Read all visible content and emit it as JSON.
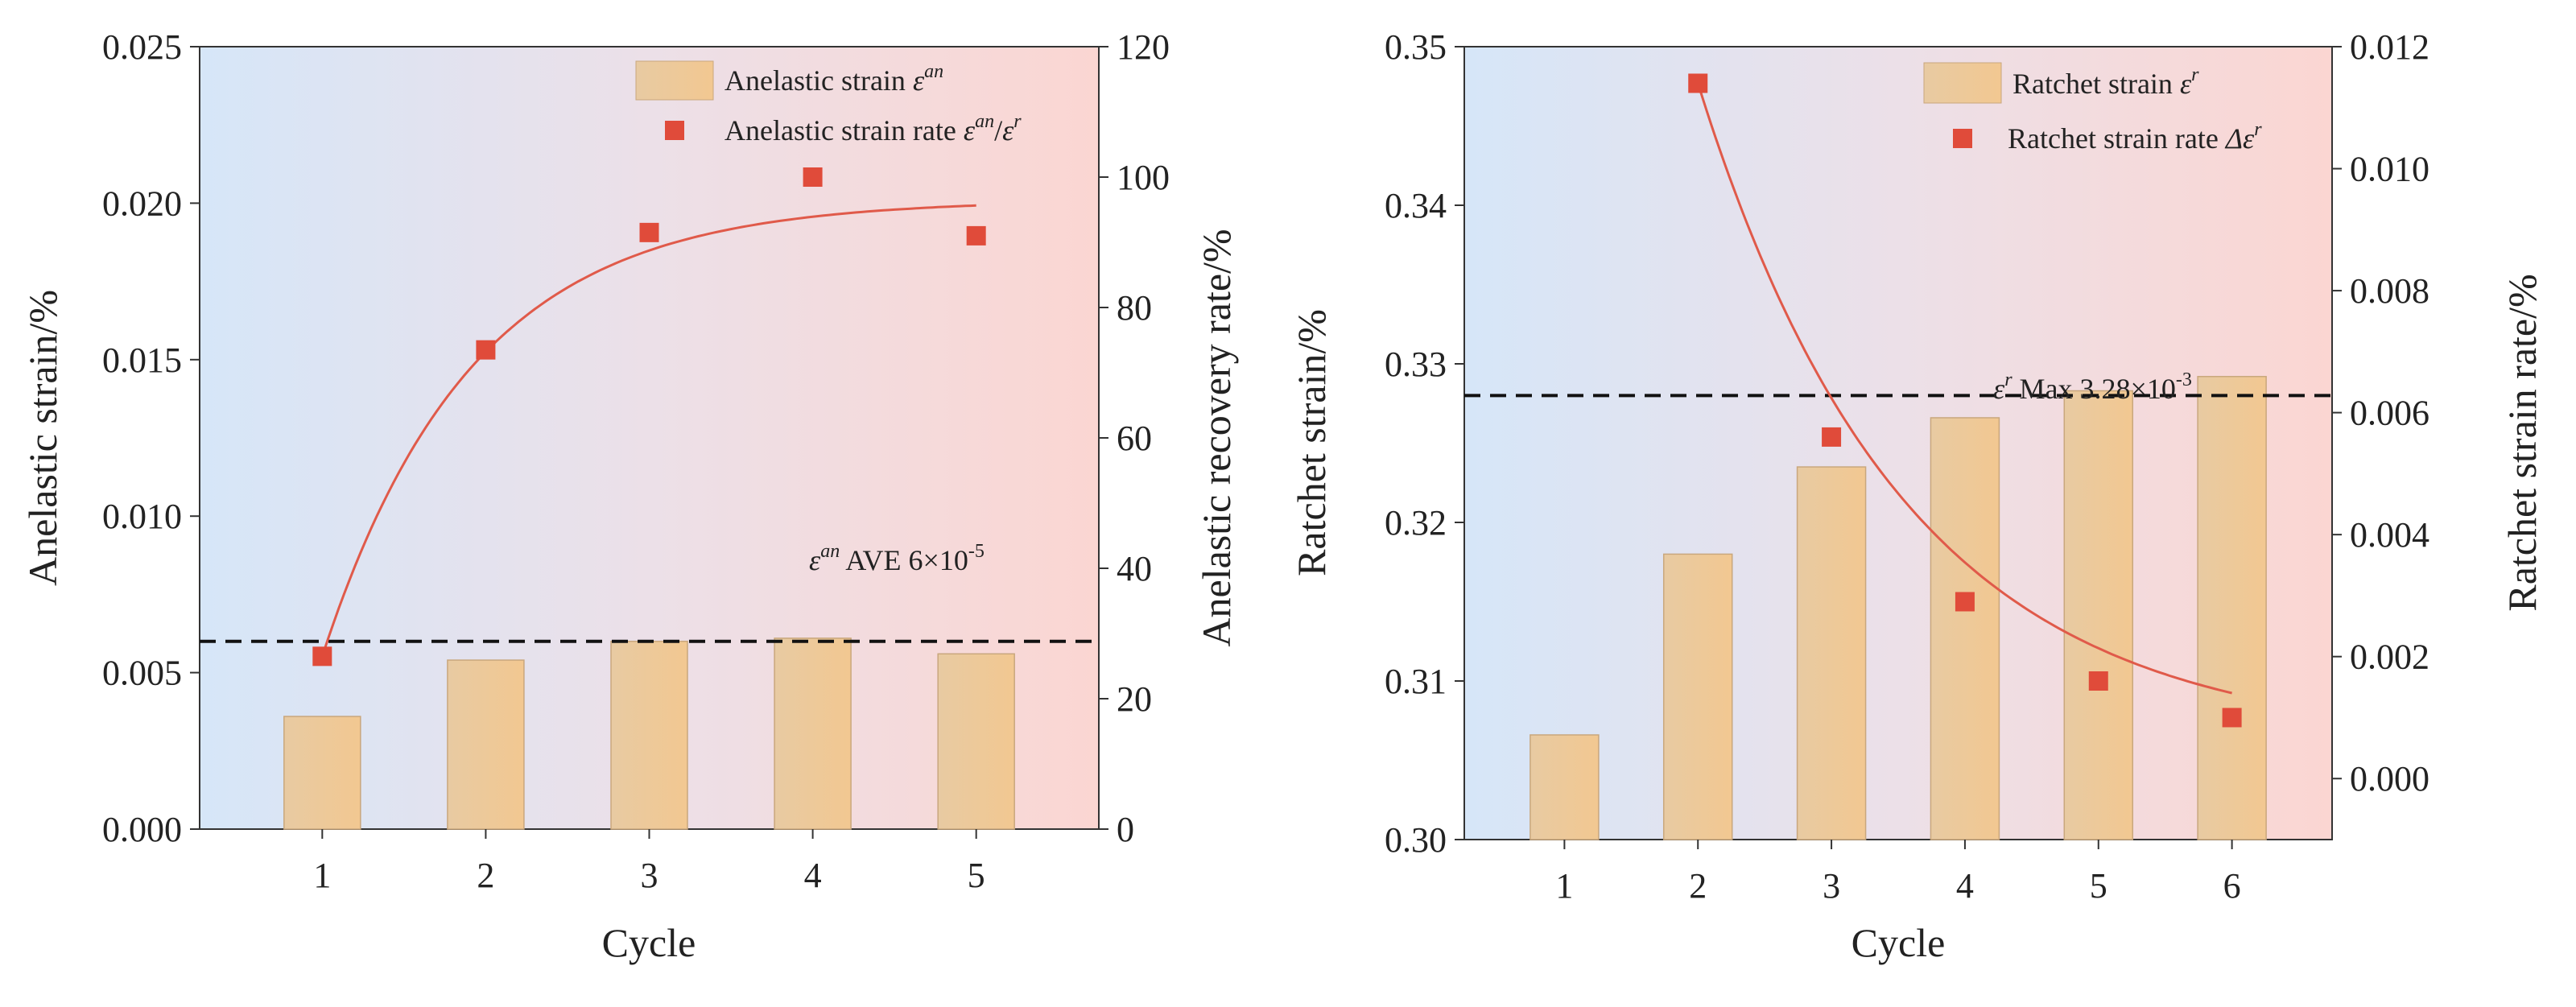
{
  "chart_data": [
    {
      "type": "bar",
      "panel": "left",
      "categories": [
        "1",
        "2",
        "3",
        "4",
        "5"
      ],
      "xlabel": "Cycle",
      "ylabel": "Anelastic strain/%",
      "ylabel_right": "Anelastic recovery rate/%",
      "ylim": [
        0,
        0.025
      ],
      "yticks": [
        "0.000",
        "0.005",
        "0.010",
        "0.015",
        "0.020",
        "0.025"
      ],
      "ylim_right": [
        0,
        120
      ],
      "yticks_right": [
        "0",
        "20",
        "40",
        "60",
        "80",
        "100",
        "120"
      ],
      "series": [
        {
          "name": "Anelastic strain",
          "axis": "left",
          "kind": "bar",
          "values": [
            0.0036,
            0.0054,
            0.006,
            0.0061,
            0.0056
          ]
        },
        {
          "name": "Anelastic strain rate",
          "axis": "right",
          "kind": "scatter",
          "values": [
            26.5,
            73.5,
            91.5,
            100.0,
            91.0
          ]
        },
        {
          "name": "fit",
          "axis": "right",
          "kind": "curve",
          "model": "exp_rise",
          "params": {
            "a": 96.5,
            "b": 70.0,
            "k": 1.1,
            "x0": 1
          },
          "domain": [
            1,
            5
          ]
        }
      ],
      "reference_line": {
        "axis": "left",
        "value": 0.006
      },
      "legend": {
        "position": "top-right",
        "bar_label": "Anelastic strain ",
        "bar_sym": "ε",
        "bar_sup": "an",
        "rate_label": "Anelastic strain rate ",
        "rate_sym": "ε",
        "rate_sup": "an",
        "rate_sep": "/",
        "rate_sym2": "ε",
        "rate_sup2": "r"
      },
      "annotation": {
        "sym": "ε",
        "sup": "an",
        "text": " AVE 6×10",
        "exp": "-5"
      }
    },
    {
      "type": "bar",
      "panel": "right",
      "categories": [
        "1",
        "2",
        "3",
        "4",
        "5",
        "6"
      ],
      "xlabel": "Cycle",
      "ylabel": "Ratchet strain/%",
      "ylabel_right": "Ratchet strain rate/%",
      "ylim": [
        0.3,
        0.35
      ],
      "yticks": [
        "0.30",
        "0.31",
        "0.32",
        "0.33",
        "0.34",
        "0.35"
      ],
      "ylim_right": [
        -0.001,
        0.012
      ],
      "yticks_right": [
        "0.000",
        "0.002",
        "0.004",
        "0.006",
        "0.008",
        "0.010",
        "0.012"
      ],
      "series": [
        {
          "name": "Ratchet strain",
          "axis": "left",
          "kind": "bar",
          "values": [
            0.3066,
            0.318,
            0.3235,
            0.3266,
            0.3283,
            0.3292
          ]
        },
        {
          "name": "Ratchet strain rate",
          "axis": "right",
          "kind": "scatter",
          "values": [
            null,
            0.0114,
            0.0056,
            0.0029,
            0.0016,
            0.001
          ]
        },
        {
          "name": "fit",
          "axis": "right",
          "kind": "curve",
          "model": "exp_decay",
          "params": {
            "a": 0.0006,
            "b": 0.0108,
            "k": 0.65,
            "x0": 2
          },
          "domain": [
            2,
            6
          ]
        }
      ],
      "reference_line": {
        "axis": "left",
        "value": 0.328
      },
      "legend": {
        "position": "top-right",
        "bar_label": "Ratchet strain ",
        "bar_sym": "ε",
        "bar_sup": "r",
        "rate_label": "Ratchet strain rate ",
        "rate_sym": "Δε",
        "rate_sup": "r"
      },
      "annotation": {
        "sym": "ε",
        "sup": "r",
        "text": " Max 3.28×10",
        "exp": "-3"
      }
    }
  ]
}
